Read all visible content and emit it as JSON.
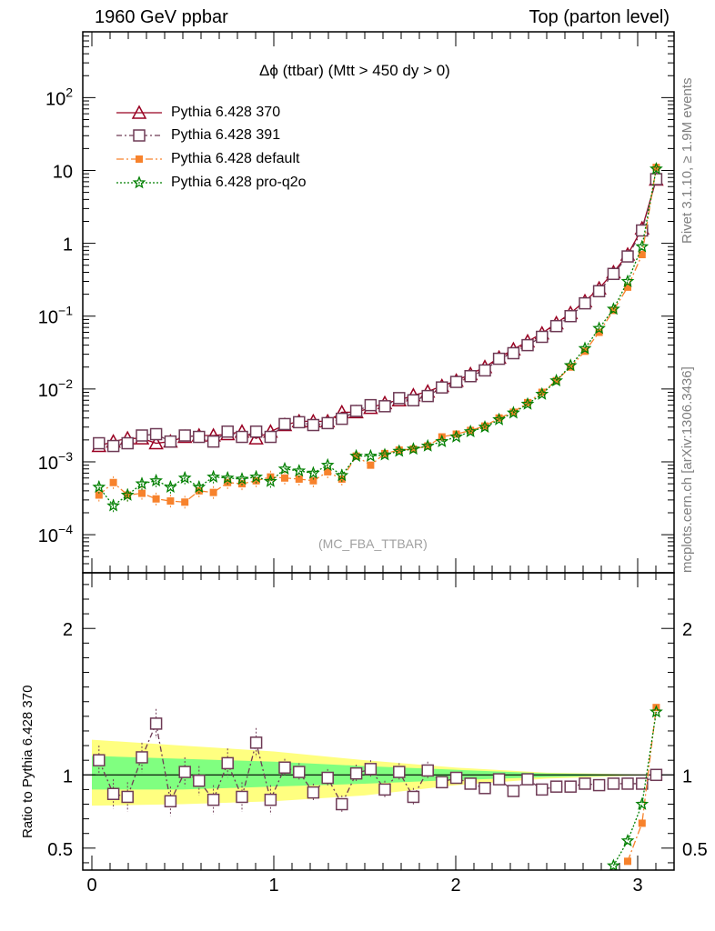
{
  "header": {
    "left": "1960 GeV ppbar",
    "right": "Top (parton level)"
  },
  "side_texts": {
    "rivet": "Rivet 3.1.10, ≥ 1.9M events",
    "source": "mcplots.cern.ch [arXiv:1306.3436]"
  },
  "plot_title": "Δϕ (ttbar) (Mtt > 450 dy > 0)",
  "watermark": "(MC_FBA_TTBAR)",
  "ratio_ylabel": "Ratio to Pythia 6.428 370",
  "colors": {
    "p370": "#990022",
    "p391": "#6e3a55",
    "default": "#f7822c",
    "proq2o": "#007f00",
    "band_outer": "#ffff80",
    "band_inner": "#80ff80"
  },
  "chart_data": [
    {
      "type": "line",
      "log_y": true,
      "xlim": [
        -0.05,
        3.2
      ],
      "ylim": [
        3e-05,
        800
      ],
      "y_ticks": [
        {
          "value": 0.0001,
          "base": "10",
          "exp": "−4"
        },
        {
          "value": 0.001,
          "base": "10",
          "exp": "−3"
        },
        {
          "value": 0.01,
          "base": "10",
          "exp": "−2"
        },
        {
          "value": 0.1,
          "base": "10",
          "exp": "−1"
        },
        {
          "value": 1,
          "base": "1",
          "exp": ""
        },
        {
          "value": 10,
          "base": "10",
          "exp": ""
        },
        {
          "value": 100,
          "base": "10",
          "exp": "2"
        }
      ],
      "legend": [
        {
          "key": "p370",
          "label": "Pythia 6.428 370"
        },
        {
          "key": "p391",
          "label": "Pythia 6.428 391"
        },
        {
          "key": "default",
          "label": "Pythia 6.428 default"
        },
        {
          "key": "proq2o",
          "label": "Pythia 6.428 pro-q2o"
        }
      ],
      "x": [
        0.039,
        0.118,
        0.196,
        0.275,
        0.353,
        0.432,
        0.511,
        0.589,
        0.668,
        0.746,
        0.825,
        0.903,
        0.982,
        1.06,
        1.139,
        1.217,
        1.296,
        1.374,
        1.453,
        1.532,
        1.61,
        1.689,
        1.767,
        1.846,
        1.924,
        2.003,
        2.081,
        2.16,
        2.238,
        2.317,
        2.395,
        2.474,
        2.553,
        2.631,
        2.71,
        2.788,
        2.867,
        2.945,
        3.024,
        3.102
      ],
      "series": [
        {
          "key": "p370",
          "marker": "triangle",
          "dash": "",
          "values": [
            0.00165,
            0.0019,
            0.0021,
            0.0021,
            0.0018,
            0.0019,
            0.0022,
            0.0023,
            0.0023,
            0.0024,
            0.0026,
            0.0021,
            0.0026,
            0.0032,
            0.0036,
            0.0036,
            0.0036,
            0.0048,
            0.0048,
            0.0055,
            0.0064,
            0.007,
            0.0082,
            0.0092,
            0.011,
            0.013,
            0.016,
            0.02,
            0.027,
            0.035,
            0.045,
            0.058,
            0.08,
            0.11,
            0.16,
            0.24,
            0.4,
            0.7,
            1.6,
            7.5
          ]
        },
        {
          "key": "p391",
          "marker": "square",
          "dash": "6,3,2,3",
          "values": [
            0.0018,
            0.00165,
            0.0018,
            0.0023,
            0.0024,
            0.0019,
            0.0023,
            0.0022,
            0.0019,
            0.0026,
            0.0022,
            0.0026,
            0.0022,
            0.0033,
            0.0035,
            0.0032,
            0.0034,
            0.0039,
            0.005,
            0.006,
            0.0058,
            0.0075,
            0.007,
            0.008,
            0.0105,
            0.0125,
            0.015,
            0.018,
            0.026,
            0.031,
            0.04,
            0.052,
            0.073,
            0.1,
            0.15,
            0.22,
            0.38,
            0.66,
            1.5,
            7.6
          ]
        },
        {
          "key": "default",
          "marker": "filledsquare",
          "dash": "8,3,2,3",
          "values": [
            0.00035,
            0.00052,
            0.00035,
            0.00037,
            0.00031,
            0.00029,
            0.00028,
            0.0004,
            0.00038,
            0.00052,
            0.0005,
            0.00055,
            0.00062,
            0.0006,
            0.00058,
            0.00055,
            0.00073,
            0.00058,
            0.0012,
            0.0009,
            0.0013,
            0.00145,
            0.0015,
            0.00165,
            0.0022,
            0.0024,
            0.0027,
            0.0031,
            0.004,
            0.0048,
            0.0065,
            0.009,
            0.013,
            0.02,
            0.033,
            0.06,
            0.12,
            0.25,
            0.7,
            11.0
          ]
        },
        {
          "key": "proq2o",
          "marker": "star",
          "dash": "2,2",
          "values": [
            0.00045,
            0.00025,
            0.00035,
            0.0005,
            0.00055,
            0.00045,
            0.0006,
            0.00045,
            0.00062,
            0.0006,
            0.00058,
            0.00062,
            0.00054,
            0.0008,
            0.00075,
            0.0007,
            0.0009,
            0.00065,
            0.0012,
            0.0012,
            0.00125,
            0.0014,
            0.0015,
            0.00165,
            0.0019,
            0.0022,
            0.0026,
            0.003,
            0.0038,
            0.0047,
            0.0062,
            0.0085,
            0.013,
            0.021,
            0.036,
            0.068,
            0.125,
            0.3,
            0.9,
            10.5
          ]
        }
      ]
    },
    {
      "type": "line",
      "xlim": [
        -0.05,
        3.2
      ],
      "ylim": [
        0.35,
        2.38
      ],
      "x_ticks": [
        0,
        1,
        2,
        3
      ],
      "y_ticks": [
        0.5,
        1,
        2
      ],
      "reference_line": 1,
      "band_outer": [
        [
          0.0,
          0.79,
          1.24
        ],
        [
          0.5,
          0.8,
          1.2
        ],
        [
          1.0,
          0.82,
          1.16
        ],
        [
          1.5,
          0.86,
          1.1
        ],
        [
          2.0,
          0.93,
          1.05
        ],
        [
          2.5,
          0.975,
          1.015
        ],
        [
          3.0,
          0.995,
          1.003
        ],
        [
          3.14,
          1.0,
          1.0
        ]
      ],
      "band_inner": [
        [
          0.0,
          0.9,
          1.13
        ],
        [
          0.5,
          0.9,
          1.11
        ],
        [
          1.0,
          0.92,
          1.09
        ],
        [
          1.5,
          0.94,
          1.06
        ],
        [
          2.0,
          0.965,
          1.035
        ],
        [
          2.5,
          0.985,
          1.01
        ],
        [
          3.0,
          0.997,
          1.002
        ],
        [
          3.14,
          1.0,
          1.0
        ]
      ],
      "series": [
        {
          "key": "p391",
          "marker": "square",
          "dash": "6,3,2,3",
          "x": [
            0.039,
            0.118,
            0.196,
            0.275,
            0.353,
            0.432,
            0.511,
            0.589,
            0.668,
            0.746,
            0.825,
            0.903,
            0.982,
            1.06,
            1.139,
            1.217,
            1.296,
            1.374,
            1.453,
            1.532,
            1.61,
            1.689,
            1.767,
            1.846,
            1.924,
            2.003,
            2.081,
            2.16,
            2.238,
            2.317,
            2.395,
            2.474,
            2.553,
            2.631,
            2.71,
            2.788,
            2.867,
            2.945,
            3.024,
            3.102
          ],
          "values": [
            1.1,
            0.87,
            0.85,
            1.12,
            1.35,
            0.82,
            1.02,
            0.96,
            0.83,
            1.08,
            0.85,
            1.22,
            0.83,
            1.05,
            1.02,
            0.88,
            0.98,
            0.8,
            1.01,
            1.04,
            0.9,
            1.02,
            0.85,
            1.03,
            0.95,
            0.98,
            0.94,
            0.91,
            0.97,
            0.89,
            0.97,
            0.9,
            0.92,
            0.92,
            0.94,
            0.93,
            0.94,
            0.94,
            0.94,
            1.0
          ]
        },
        {
          "key": "default",
          "marker": "filledsquare",
          "dash": "8,3,2,3",
          "x": [
            2.945,
            3.024,
            3.102
          ],
          "values": [
            0.41,
            0.67,
            1.46
          ]
        },
        {
          "key": "proq2o",
          "marker": "star",
          "dash": "2,2",
          "x": [
            2.867,
            2.945,
            3.024,
            3.102
          ],
          "values": [
            0.38,
            0.55,
            0.8,
            1.43
          ]
        }
      ]
    }
  ]
}
